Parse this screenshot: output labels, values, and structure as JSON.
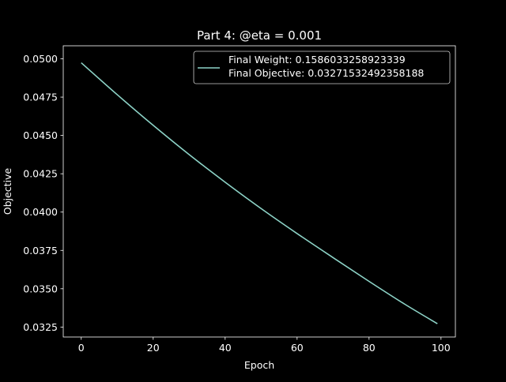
{
  "chart_data": {
    "type": "line",
    "title": "Part 4: @eta = 0.001",
    "xlabel": "Epoch",
    "ylabel": "Objective",
    "xlim": [
      -5,
      104
    ],
    "ylim": [
      0.03185,
      0.05085
    ],
    "xticks": [
      0,
      20,
      40,
      60,
      80,
      100
    ],
    "yticks": [
      0.0325,
      0.035,
      0.0375,
      0.04,
      0.0425,
      0.045,
      0.0475,
      0.05
    ],
    "xtick_labels": [
      "0",
      "20",
      "40",
      "60",
      "80",
      "100"
    ],
    "ytick_labels": [
      "0.0325",
      "0.0350",
      "0.0375",
      "0.0400",
      "0.0425",
      "0.0450",
      "0.0475",
      "0.0500"
    ],
    "grid": false,
    "legend_position": "top-right",
    "series": [
      {
        "name": "Final Weight: 0.1586033258923339\nFinal Objective: 0.03271532492358188",
        "legend_lines": [
          "Final Weight: 0.1586033258923339",
          "Final Objective: 0.03271532492358188"
        ],
        "color": "#8dd3c7",
        "x": [
          0,
          10,
          20,
          30,
          40,
          50,
          60,
          70,
          80,
          90,
          99
        ],
        "y": [
          0.04974,
          0.04766,
          0.04566,
          0.04375,
          0.04195,
          0.04023,
          0.0386,
          0.03703,
          0.03548,
          0.03398,
          0.03272
        ]
      }
    ]
  }
}
